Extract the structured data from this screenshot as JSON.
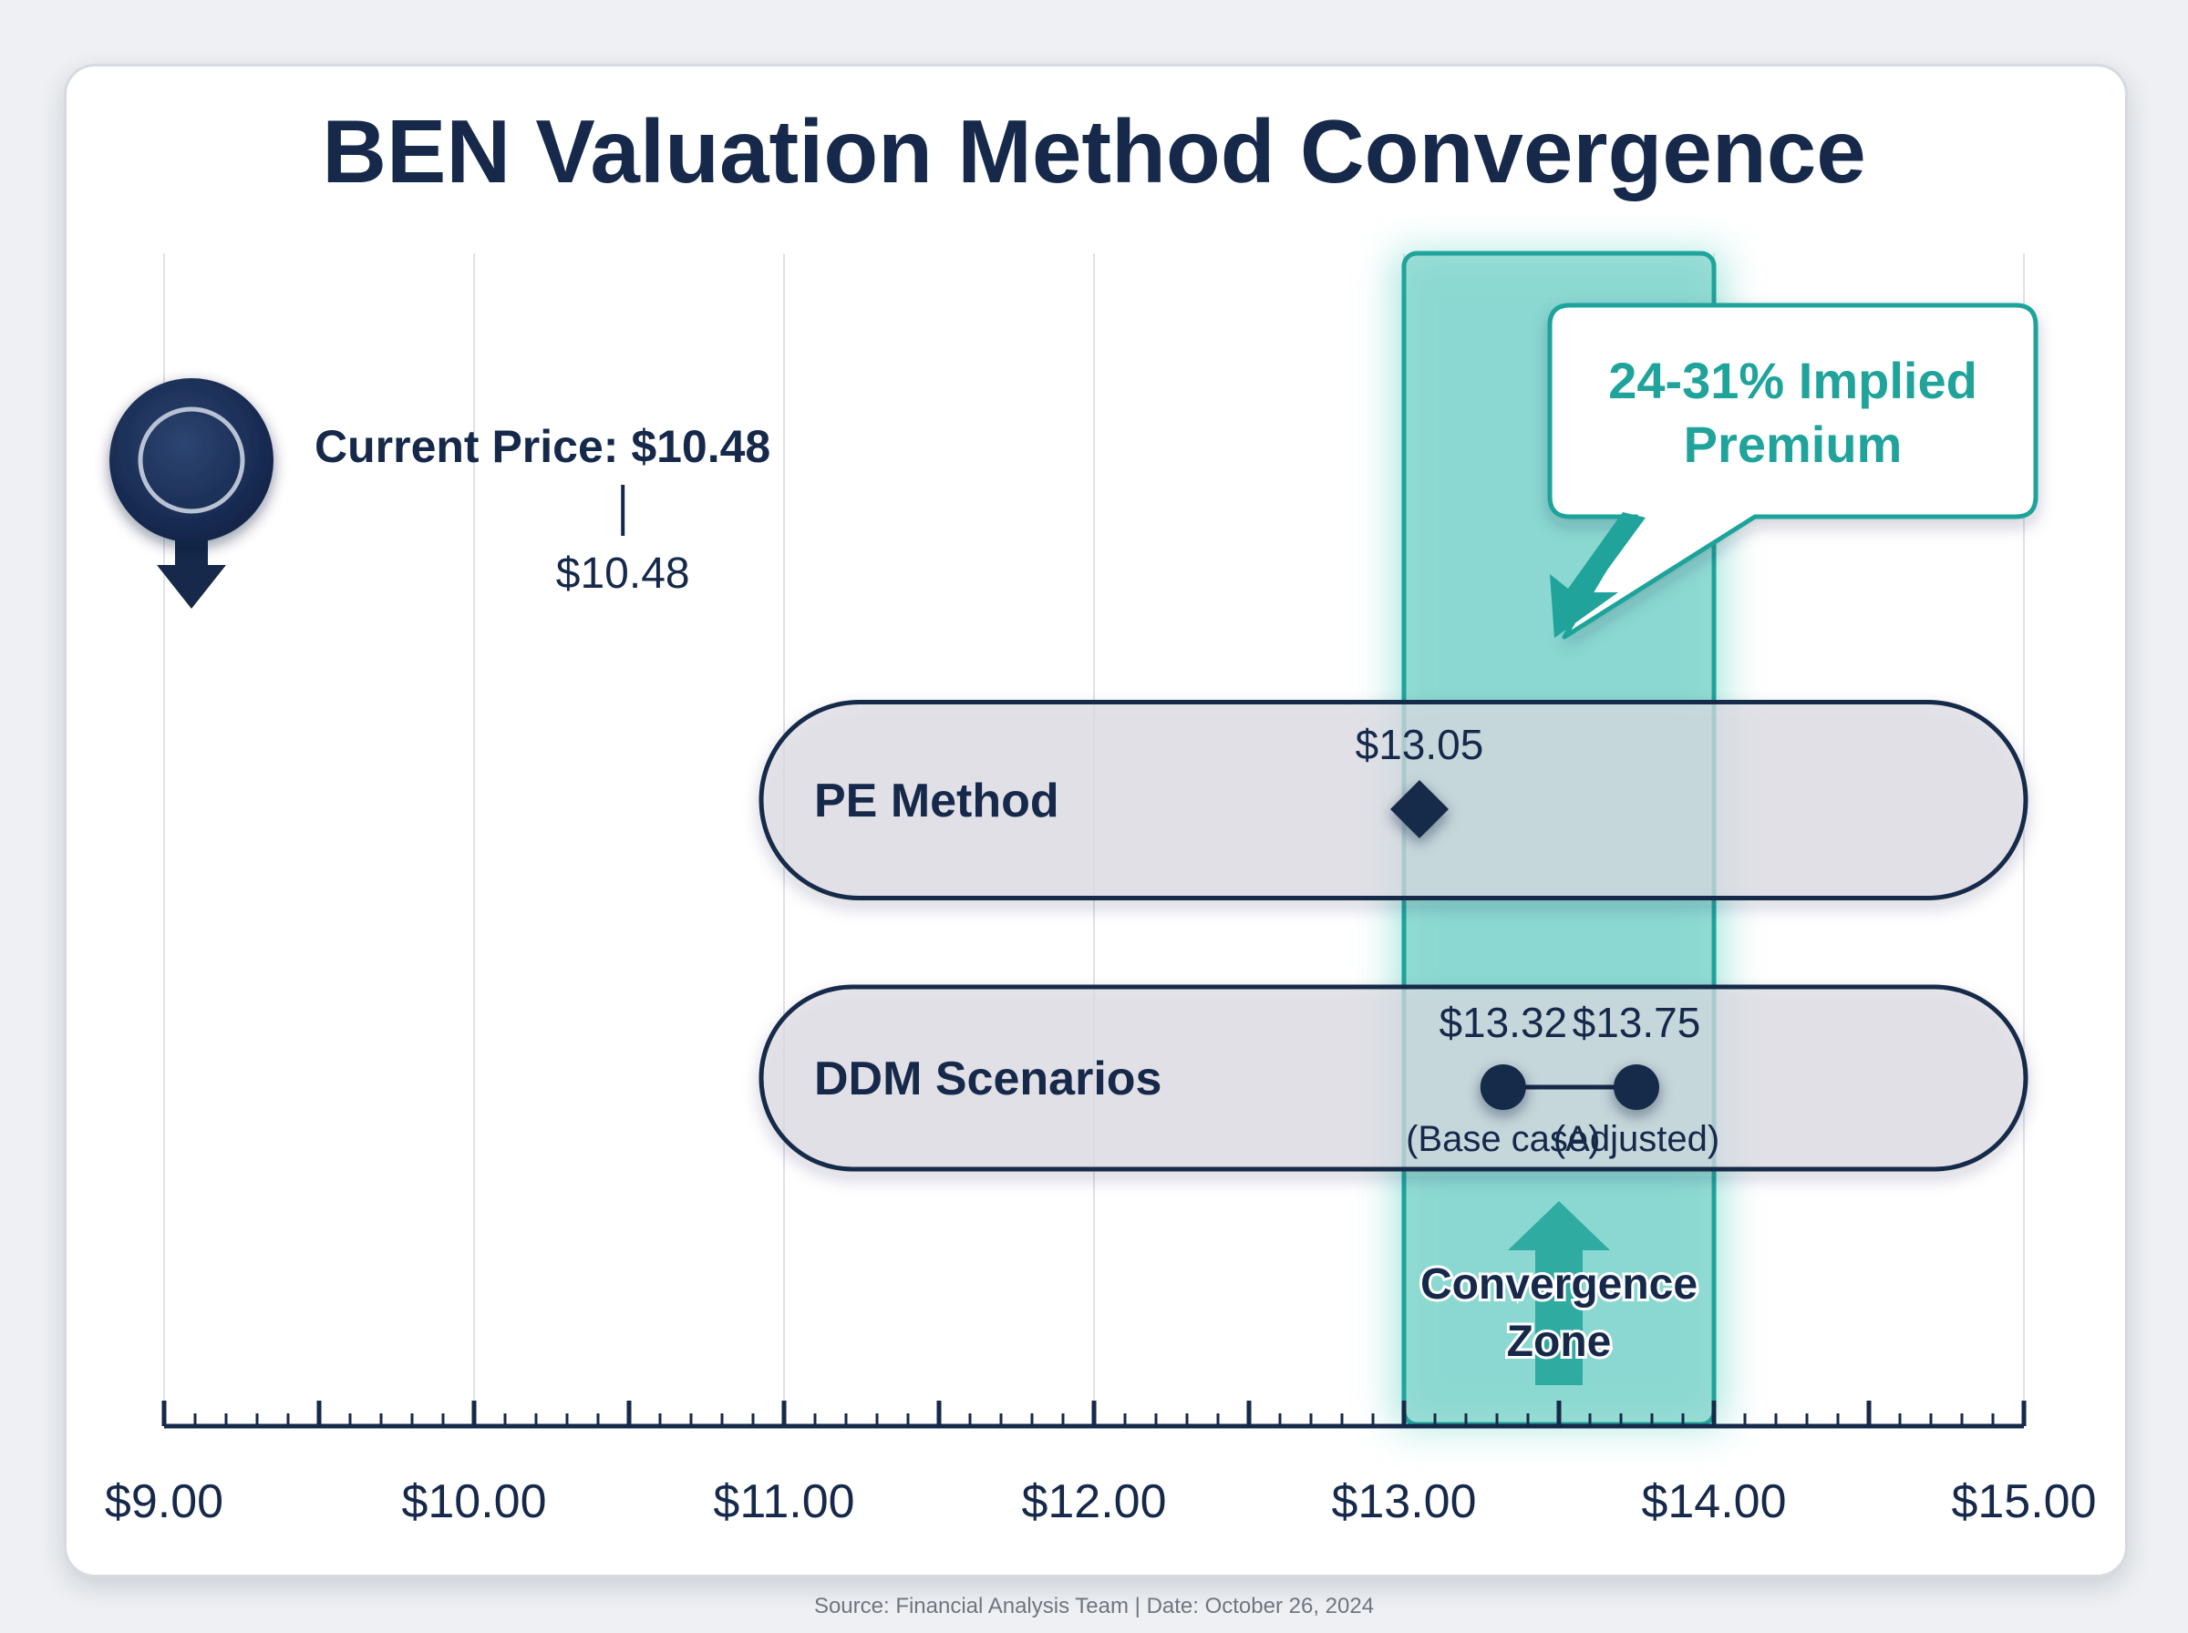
{
  "chart_data": {
    "type": "range-dot",
    "title": "BEN Valuation Method Convergence",
    "xlim": [
      9,
      15
    ],
    "x_ticks": [
      "$9.00",
      "$10.00",
      "$11.00",
      "$12.00",
      "$13.00",
      "$14.00",
      "$15.00"
    ],
    "grid": "vertical",
    "current_price": {
      "label": "Current Price: $10.48",
      "value": 10.48,
      "value_label": "$10.48"
    },
    "series": [
      {
        "name": "PE Method",
        "points": [
          {
            "x": 13.05,
            "label": "$13.05",
            "sublabel": ""
          }
        ]
      },
      {
        "name": "DDM Scenarios",
        "points": [
          {
            "x": 13.32,
            "label": "$13.32",
            "sublabel": "(Base case)"
          },
          {
            "x": 13.75,
            "label": "$13.75",
            "sublabel": "(Adjusted)"
          }
        ]
      }
    ],
    "convergence_zone": {
      "range": [
        13.0,
        14.0
      ],
      "label_lines": [
        "Convergence",
        "Zone"
      ]
    },
    "callout": {
      "lines": [
        "24-31% Implied",
        "Premium"
      ]
    },
    "colors": {
      "navy": "#16294a",
      "teal": "#1fa39a",
      "teal_fill": "#7fd3cb",
      "pill_fill": "#dcdde3",
      "grid": "#dfe2e6"
    }
  },
  "footer": {
    "source": "Source: Financial Analysis Team | Date: October 26, 2024"
  }
}
